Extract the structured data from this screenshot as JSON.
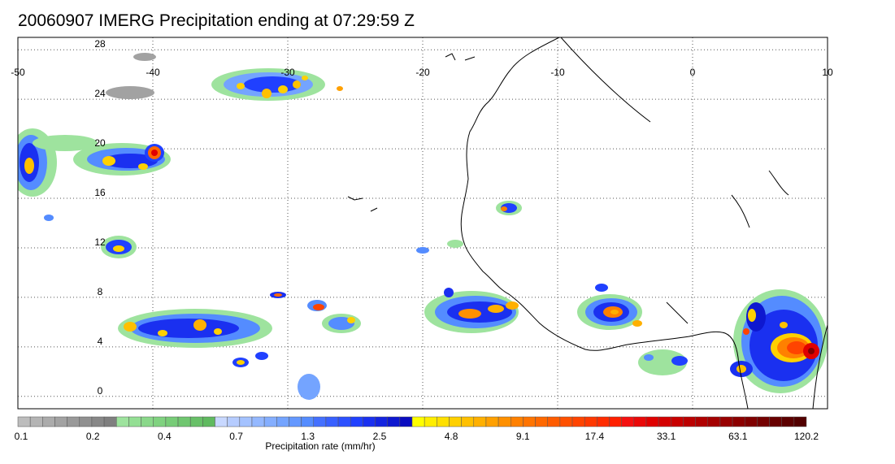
{
  "title": "20060907 IMERG Precipitation ending at 07:29:59 Z",
  "map": {
    "lon_range": [
      -50,
      10
    ],
    "lat_range": [
      -1,
      29
    ],
    "lon_labels": [
      "-50",
      "-40",
      "-30",
      "-20",
      "-10",
      "0",
      "10"
    ],
    "lat_labels": [
      "28",
      "24",
      "20",
      "16",
      "12",
      "8",
      "4",
      "0"
    ],
    "grid": "dotted, every 10 degrees longitude and 4 degrees latitude",
    "coastline_color": "#000000"
  },
  "colorbar": {
    "label": "Precipitation rate (mm/hr)",
    "tick_labels": [
      "0.1",
      "0.2",
      "0.4",
      "0.7",
      "1.3",
      "2.5",
      "4.8",
      "9.1",
      "17.4",
      "33.1",
      "63.1",
      "120.2"
    ],
    "colors": [
      "#bdbdbd",
      "#b4b4b4",
      "#ababab",
      "#a2a2a2",
      "#999999",
      "#909090",
      "#878787",
      "#7f7f7f",
      "#9ee39e",
      "#94df94",
      "#8ad88a",
      "#80d280",
      "#78cc78",
      "#70c670",
      "#68c068",
      "#60ba60",
      "#c8d8ff",
      "#b6ccff",
      "#a4c2ff",
      "#94b8ff",
      "#84aeff",
      "#74a4ff",
      "#6498ff",
      "#548cff",
      "#4470ff",
      "#3860ff",
      "#2c50ff",
      "#2040ff",
      "#1a30f0",
      "#1424e0",
      "#0e18d0",
      "#0a0cc0",
      "#ffff00",
      "#ffee00",
      "#ffe000",
      "#ffd000",
      "#ffc000",
      "#ffb000",
      "#ffa000",
      "#ff9000",
      "#ff8000",
      "#ff7400",
      "#ff6800",
      "#ff5c00",
      "#ff5000",
      "#ff4400",
      "#ff3800",
      "#ff2c00",
      "#ff2000",
      "#f51010",
      "#ea0808",
      "#e00000",
      "#d40000",
      "#c80000",
      "#bc0000",
      "#b00000",
      "#a40000",
      "#980000",
      "#8c0000",
      "#800000",
      "#740000",
      "#680000",
      "#5c0000",
      "#520000"
    ]
  }
}
